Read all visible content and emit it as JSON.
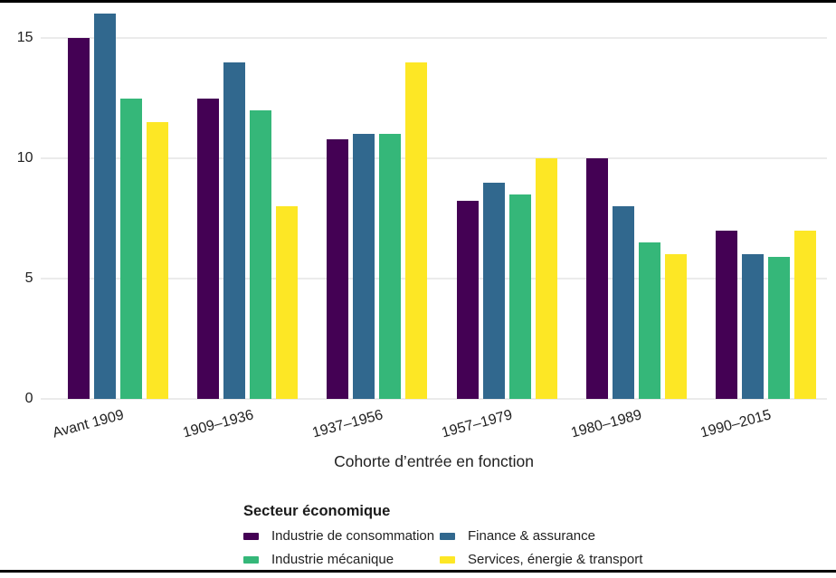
{
  "chart_data": {
    "type": "bar",
    "title": "",
    "xlabel": "Cohorte d’entrée en fonction",
    "ylabel": "",
    "categories": [
      "Avant 1909",
      "1909–1936",
      "1937–1956",
      "1957–1979",
      "1980–1989",
      "1990–2015"
    ],
    "series": [
      {
        "name": "Industrie de consommation",
        "color": "#440154",
        "values": [
          15.0,
          12.5,
          10.8,
          8.25,
          10.0,
          7.0
        ]
      },
      {
        "name": "Finance & assurance",
        "color": "#31688E",
        "values": [
          16.0,
          14.0,
          11.0,
          9.0,
          8.0,
          6.0
        ]
      },
      {
        "name": "Industrie mécanique",
        "color": "#35B779",
        "values": [
          12.5,
          12.0,
          11.0,
          8.5,
          6.5,
          5.9
        ]
      },
      {
        "name": "Services, énergie & transport",
        "color": "#FDE725",
        "values": [
          11.5,
          8.0,
          14.0,
          10.0,
          6.0,
          7.0
        ]
      }
    ],
    "y_ticks": [
      0,
      5,
      10,
      15
    ],
    "ylim": [
      0,
      16.5
    ],
    "grid": "horizontal-only",
    "gridline_color": "#ebebeb",
    "text_color": "#212121",
    "background_color": "#ffffff",
    "legend_title": "Secteur économique",
    "legend_position": "bottom"
  }
}
